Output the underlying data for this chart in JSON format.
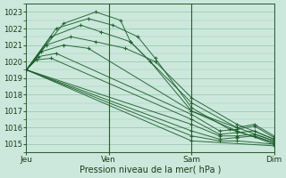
{
  "bg_color": "#cce8dc",
  "grid_color": "#99ccb3",
  "line_color": "#1a5c2a",
  "ylim": [
    1014.5,
    1023.5
  ],
  "yticks": [
    1015,
    1016,
    1017,
    1018,
    1019,
    1020,
    1021,
    1022,
    1023
  ],
  "xlabel": "Pression niveau de la mer( hPa )",
  "day_labels": [
    "Jeu",
    "Ven",
    "Sam",
    "Dim"
  ],
  "day_positions": [
    0,
    0.333,
    0.667,
    1.0
  ],
  "series": [
    {
      "points": [
        [
          0,
          1019.5
        ],
        [
          0.15,
          1022.3
        ],
        [
          0.28,
          1023.0
        ],
        [
          0.38,
          1022.5
        ],
        [
          0.42,
          1021.2
        ],
        [
          0.5,
          1020.0
        ],
        [
          0.667,
          1017.0
        ],
        [
          0.85,
          1015.8
        ],
        [
          1.0,
          1015.0
        ]
      ]
    },
    {
      "points": [
        [
          0,
          1019.5
        ],
        [
          0.12,
          1022.0
        ],
        [
          0.25,
          1022.6
        ],
        [
          0.35,
          1022.2
        ],
        [
          0.45,
          1021.5
        ],
        [
          0.52,
          1020.2
        ],
        [
          0.667,
          1017.2
        ],
        [
          0.82,
          1015.9
        ],
        [
          1.0,
          1015.1
        ]
      ]
    },
    {
      "points": [
        [
          0,
          1019.5
        ],
        [
          0.1,
          1021.5
        ],
        [
          0.22,
          1022.2
        ],
        [
          0.3,
          1021.8
        ],
        [
          0.42,
          1021.2
        ],
        [
          0.667,
          1017.5
        ],
        [
          0.85,
          1016.0
        ],
        [
          1.0,
          1015.2
        ]
      ]
    },
    {
      "points": [
        [
          0,
          1019.5
        ],
        [
          0.08,
          1021.0
        ],
        [
          0.18,
          1021.5
        ],
        [
          0.28,
          1021.2
        ],
        [
          0.4,
          1020.8
        ],
        [
          0.52,
          1020.0
        ],
        [
          0.667,
          1017.8
        ],
        [
          0.85,
          1016.2
        ],
        [
          1.0,
          1015.3
        ]
      ]
    },
    {
      "points": [
        [
          0,
          1019.5
        ],
        [
          0.06,
          1020.6
        ],
        [
          0.15,
          1021.0
        ],
        [
          0.25,
          1020.8
        ],
        [
          0.667,
          1017.0
        ],
        [
          0.85,
          1016.0
        ],
        [
          0.92,
          1016.2
        ],
        [
          1.0,
          1015.5
        ]
      ]
    },
    {
      "points": [
        [
          0,
          1019.5
        ],
        [
          0.05,
          1020.3
        ],
        [
          0.12,
          1020.5
        ],
        [
          0.667,
          1016.8
        ],
        [
          0.78,
          1015.8
        ],
        [
          0.85,
          1015.9
        ],
        [
          0.92,
          1016.1
        ],
        [
          1.0,
          1015.4
        ]
      ]
    },
    {
      "points": [
        [
          0,
          1019.5
        ],
        [
          0.04,
          1020.1
        ],
        [
          0.1,
          1020.2
        ],
        [
          0.667,
          1016.5
        ],
        [
          0.78,
          1015.6
        ],
        [
          0.85,
          1015.7
        ],
        [
          0.92,
          1015.8
        ],
        [
          1.0,
          1015.3
        ]
      ]
    },
    {
      "points": [
        [
          0,
          1019.5
        ],
        [
          0.667,
          1016.2
        ],
        [
          0.78,
          1015.5
        ],
        [
          0.85,
          1015.5
        ],
        [
          0.92,
          1015.6
        ],
        [
          1.0,
          1015.2
        ]
      ]
    },
    {
      "points": [
        [
          0,
          1019.5
        ],
        [
          0.667,
          1015.8
        ],
        [
          0.78,
          1015.3
        ],
        [
          0.85,
          1015.4
        ],
        [
          0.92,
          1015.5
        ],
        [
          1.0,
          1015.1
        ]
      ]
    },
    {
      "points": [
        [
          0,
          1019.5
        ],
        [
          0.667,
          1015.5
        ],
        [
          0.78,
          1015.2
        ],
        [
          0.85,
          1015.2
        ],
        [
          1.0,
          1015.0
        ]
      ]
    },
    {
      "points": [
        [
          0,
          1019.5
        ],
        [
          0.667,
          1015.2
        ],
        [
          1.0,
          1014.9
        ]
      ]
    }
  ]
}
